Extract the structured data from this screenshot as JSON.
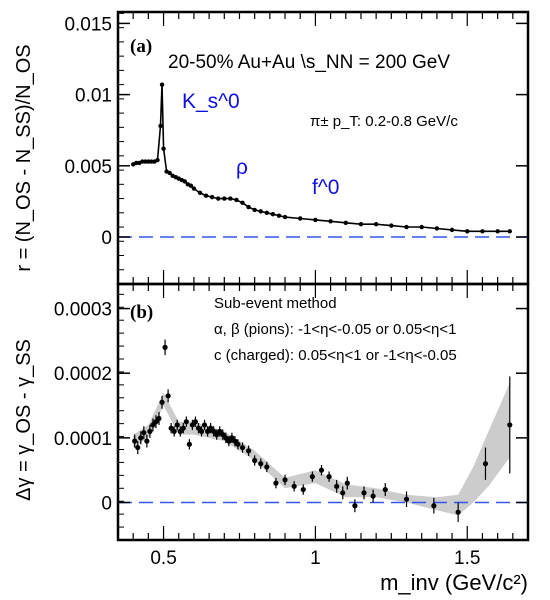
{
  "chart_data": [
    {
      "type": "line",
      "panel_label": "(a)",
      "ylabel": "r = (N_OS - N_SS)/N_OS",
      "ylim": [
        -0.0033,
        0.0158
      ],
      "xlim": [
        0.35,
        1.7
      ],
      "yticks": [
        0,
        0.005,
        0.01,
        0.015
      ],
      "ytick_labels": [
        "0",
        "0.005",
        "0.01",
        "0.015"
      ],
      "annotations": {
        "title": "20-50% Au+Au \\s_NN = 200 GeV",
        "pt_range": "π± p_T: 0.2-0.8 GeV/c",
        "kshort": "K_s^0",
        "rho": "ρ",
        "f0": "f^0"
      },
      "reference_line": 0,
      "series": [
        {
          "x": [
            0.4,
            0.41,
            0.42,
            0.43,
            0.44,
            0.45,
            0.46,
            0.47,
            0.48,
            0.49,
            0.495,
            0.5,
            0.51,
            0.52,
            0.53,
            0.54,
            0.55,
            0.56,
            0.57,
            0.58,
            0.59,
            0.6,
            0.62,
            0.64,
            0.66,
            0.68,
            0.7,
            0.72,
            0.74,
            0.76,
            0.78,
            0.8,
            0.82,
            0.84,
            0.86,
            0.88,
            0.9,
            0.95,
            1.0,
            1.05,
            1.1,
            1.15,
            1.2,
            1.25,
            1.3,
            1.35,
            1.4,
            1.45,
            1.5,
            1.55,
            1.6,
            1.64
          ],
          "y": [
            0.0051,
            0.0052,
            0.0052,
            0.0053,
            0.0053,
            0.0053,
            0.0053,
            0.0053,
            0.0054,
            0.0078,
            0.0107,
            0.0062,
            0.0046,
            0.0045,
            0.0043,
            0.0042,
            0.0041,
            0.004,
            0.0039,
            0.0037,
            0.0036,
            0.0034,
            0.0031,
            0.0029,
            0.0028,
            0.0027,
            0.0027,
            0.0027,
            0.0026,
            0.0024,
            0.0021,
            0.0019,
            0.0018,
            0.0017,
            0.0016,
            0.0015,
            0.0014,
            0.0013,
            0.0012,
            0.0011,
            0.001,
            0.0009,
            0.0009,
            0.0008,
            0.0007,
            0.0007,
            0.0006,
            0.0005,
            0.0004,
            0.0004,
            0.0004,
            0.0004
          ]
        }
      ]
    },
    {
      "type": "scatter",
      "panel_label": "(b)",
      "ylabel": "Δγ = γ_OS - γ_SS",
      "xlabel": "m_inv (GeV/c²)",
      "ylim": [
        -5.8e-05,
        0.000338
      ],
      "xlim": [
        0.35,
        1.7
      ],
      "xticks": [
        0.5,
        1,
        1.5
      ],
      "xtick_labels": [
        "0.5",
        "1",
        "1.5"
      ],
      "yticks": [
        0,
        0.0001,
        0.0002,
        0.0003
      ],
      "ytick_labels": [
        "0",
        "0.0001",
        "0.0002",
        "0.0003"
      ],
      "annotations": {
        "method": "Sub-event method",
        "alpha_beta": "α, β (pions): -1<η<-0.05 or 0.05<η<1",
        "c_charged": "c (charged): 0.05<η<1 or -1<η<-0.05"
      },
      "reference_line": 0,
      "series": [
        {
          "x": [
            0.405,
            0.415,
            0.425,
            0.435,
            0.445,
            0.455,
            0.465,
            0.475,
            0.485,
            0.495,
            0.505,
            0.515,
            0.525,
            0.535,
            0.545,
            0.555,
            0.565,
            0.575,
            0.585,
            0.595,
            0.605,
            0.615,
            0.625,
            0.635,
            0.645,
            0.655,
            0.665,
            0.675,
            0.685,
            0.695,
            0.705,
            0.715,
            0.725,
            0.735,
            0.745,
            0.76,
            0.78,
            0.8,
            0.82,
            0.84,
            0.87,
            0.9,
            0.93,
            0.96,
            0.99,
            1.02,
            1.045,
            1.07,
            1.09,
            1.105,
            1.13,
            1.16,
            1.19,
            1.23,
            1.3,
            1.39,
            1.47,
            1.56,
            1.64
          ],
          "y": [
            9.5e-05,
            8.5e-05,
            0.0001,
            0.000108,
            9.5e-05,
            0.00011,
            0.00012,
            0.000125,
            0.00013,
            0.000155,
            0.00024,
            0.000165,
            0.000115,
            0.00011,
            0.00012,
            0.00011,
            0.000115,
            0.000125,
            9e-05,
            0.00012,
            0.000125,
            0.000115,
            0.00011,
            0.00012,
            0.00011,
            0.000115,
            0.00011,
            0.000105,
            0.00011,
            0.000105,
            0.0001,
            9.5e-05,
            0.0001,
            9.5e-05,
            9e-05,
            8.5e-05,
            8e-05,
            6.5e-05,
            6e-05,
            5.5e-05,
            3e-05,
            3.5e-05,
            2.5e-05,
            2e-05,
            4e-05,
            5e-05,
            4e-05,
            2.5e-05,
            1.5e-05,
            3e-05,
            -5e-06,
            1.5e-05,
            1e-05,
            2e-05,
            5e-06,
            -5e-06,
            -1.5e-05,
            6e-05,
            0.00012
          ],
          "err": [
            1e-05,
            1e-05,
            1e-05,
            1e-05,
            1e-05,
            1e-05,
            1e-05,
            1e-05,
            1e-05,
            1e-05,
            1.2e-05,
            1e-05,
            8e-06,
            8e-06,
            8e-06,
            8e-06,
            8e-06,
            8e-06,
            8e-06,
            8e-06,
            8e-06,
            8e-06,
            8e-06,
            8e-06,
            8e-06,
            8e-06,
            8e-06,
            8e-06,
            8e-06,
            8e-06,
            8e-06,
            8e-06,
            8e-06,
            8e-06,
            8e-06,
            8e-06,
            8e-06,
            8e-06,
            8e-06,
            8e-06,
            8e-06,
            8e-06,
            8e-06,
            8e-06,
            8e-06,
            8e-06,
            8e-06,
            1e-05,
            1e-05,
            1e-05,
            1e-05,
            1e-05,
            1e-05,
            1e-05,
            1.2e-05,
            1.2e-05,
            1.5e-05,
            2.5e-05,
            7.5e-05
          ]
        }
      ],
      "band": {
        "x": [
          0.4,
          0.45,
          0.5,
          0.55,
          0.6,
          0.7,
          0.8,
          0.9,
          1.0,
          1.1,
          1.2,
          1.3,
          1.4,
          1.47,
          1.52,
          1.57,
          1.64
        ],
        "low": [
          8.5e-05,
          0.0001,
          0.00015,
          0.000105,
          0.000105,
          9.5e-05,
          6.5e-05,
          2.2e-05,
          3e-05,
          8e-06,
          8e-06,
          0.0,
          -1.2e-05,
          -2e-05,
          0.0,
          2.5e-05,
          7e-05
        ],
        "high": [
          0.000105,
          0.00012,
          0.00017,
          0.000125,
          0.000125,
          0.00011,
          8e-05,
          3.8e-05,
          5e-05,
          2.8e-05,
          2.2e-05,
          1.2e-05,
          8e-06,
          1.2e-05,
          5.5e-05,
          0.00011,
          0.000185
        ]
      }
    }
  ],
  "colors": {
    "line": "#000000",
    "band": "#cccccc",
    "reference": "#3355ee",
    "label": "#1010e0"
  }
}
